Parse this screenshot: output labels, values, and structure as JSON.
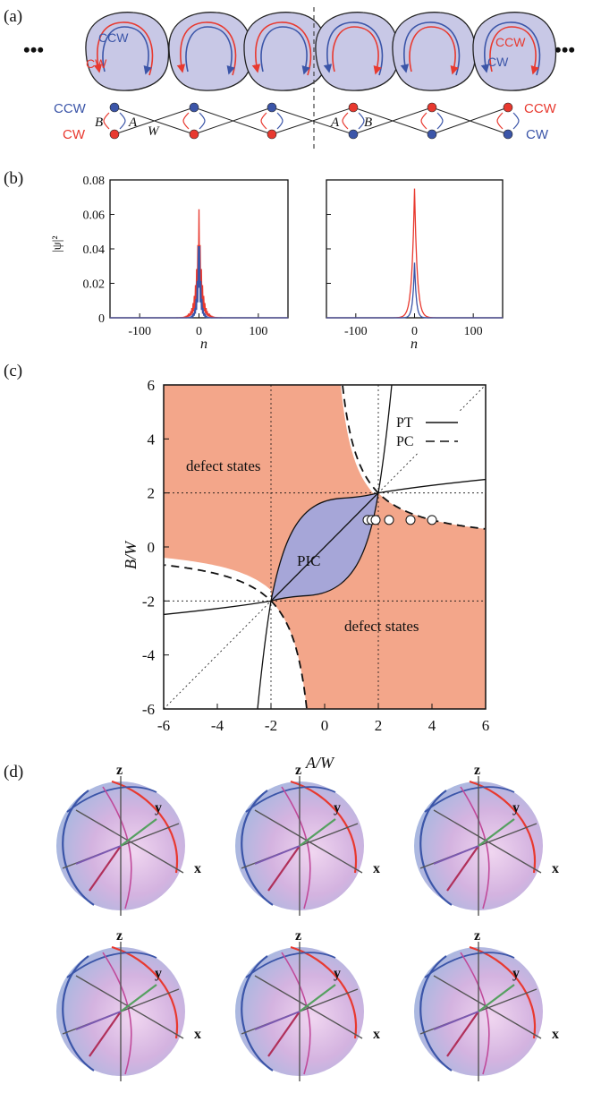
{
  "panel_labels": [
    "(a)",
    "(b)",
    "(c)",
    "(d)"
  ],
  "colors": {
    "red": "#e8392f",
    "blue": "#3b55a8",
    "disk_fill": "#c8c8e6",
    "defect_fill": "#f3a68a",
    "pic_fill": "#a6a6d8",
    "sphere_a": "#b9c8e6",
    "sphere_b": "#d9b8e2"
  },
  "panel_a": {
    "ellipsis": "•••",
    "disks": [
      {
        "ccw": "CCW",
        "cw": "CW"
      },
      {},
      {},
      {},
      {},
      {
        "ccw": "CCW",
        "cw": "CW"
      }
    ],
    "left_ccw": "CCW",
    "left_cw": "CW",
    "right_ccw": "CCW",
    "right_cw": "CW",
    "coupling_a": "A",
    "coupling_b": "B",
    "coupling_w": "W"
  },
  "panel_b": {
    "ylabel": "|ψ|²",
    "xlabel": "n",
    "yticks": [
      "0",
      "0.02",
      "0.04",
      "0.06",
      "0.08"
    ],
    "xticks": [
      "-100",
      "0",
      "100"
    ]
  },
  "chart_data": {
    "type": "line",
    "xlabel": "A/W",
    "ylabel": "B/W",
    "xlim": [
      -6,
      6
    ],
    "ylim": [
      -6,
      6
    ],
    "xticks": [
      "-6",
      "-4",
      "-2",
      "0",
      "2",
      "4",
      "6"
    ],
    "yticks": [
      "-6",
      "-4",
      "-2",
      "0",
      "2",
      "4",
      "6"
    ],
    "legend": [
      {
        "name": "PT",
        "style": "solid"
      },
      {
        "name": "PC",
        "style": "dashed"
      }
    ],
    "region_labels": [
      "defect states",
      "PIC",
      "defect states"
    ],
    "points": [
      {
        "x": 1.6,
        "y": 1
      },
      {
        "x": 1.75,
        "y": 1
      },
      {
        "x": 1.9,
        "y": 1
      },
      {
        "x": 2.4,
        "y": 1
      },
      {
        "x": 3.2,
        "y": 1
      },
      {
        "x": 4.0,
        "y": 1
      }
    ],
    "grid": "dotted lines at ±2 and diagonal",
    "legend_position": "top-right"
  },
  "panel_d": {
    "axis_labels": {
      "x": "x",
      "y": "y",
      "z": "z"
    },
    "spheres": 6
  }
}
